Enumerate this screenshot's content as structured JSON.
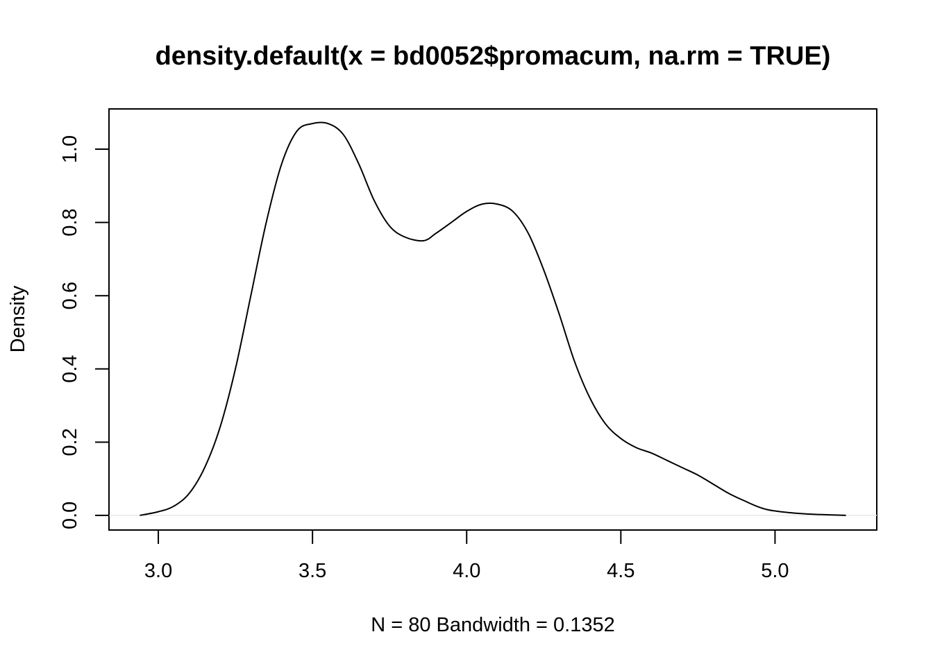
{
  "chart_data": {
    "type": "line",
    "title": "density.default(x = bd0052$promacum, na.rm = TRUE)",
    "xlabel": "N = 80   Bandwidth = 0.1352",
    "ylabel": "Density",
    "xlim": [
      2.84,
      5.33
    ],
    "ylim": [
      -0.04,
      1.11
    ],
    "x_ticks": [
      3.0,
      3.5,
      4.0,
      4.5,
      5.0
    ],
    "x_tick_labels": [
      "3.0",
      "3.5",
      "4.0",
      "4.5",
      "5.0"
    ],
    "y_ticks": [
      0.0,
      0.2,
      0.4,
      0.6,
      0.8,
      1.0
    ],
    "y_tick_labels": [
      "0.0",
      "0.2",
      "0.4",
      "0.6",
      "0.8",
      "1.0"
    ],
    "grid": false,
    "baseline": 0,
    "series": [
      {
        "x": [
          2.94,
          3.0,
          3.05,
          3.1,
          3.15,
          3.2,
          3.25,
          3.3,
          3.35,
          3.4,
          3.45,
          3.5,
          3.55,
          3.6,
          3.65,
          3.7,
          3.75,
          3.8,
          3.86,
          3.9,
          3.95,
          4.0,
          4.05,
          4.1,
          4.15,
          4.2,
          4.25,
          4.3,
          4.35,
          4.4,
          4.45,
          4.5,
          4.55,
          4.6,
          4.65,
          4.7,
          4.75,
          4.8,
          4.85,
          4.9,
          4.95,
          5.0,
          5.1,
          5.23
        ],
        "y": [
          0.0,
          0.01,
          0.025,
          0.06,
          0.13,
          0.24,
          0.4,
          0.6,
          0.8,
          0.96,
          1.05,
          1.07,
          1.07,
          1.04,
          0.96,
          0.86,
          0.79,
          0.76,
          0.75,
          0.77,
          0.8,
          0.83,
          0.85,
          0.85,
          0.83,
          0.77,
          0.67,
          0.55,
          0.42,
          0.32,
          0.25,
          0.21,
          0.185,
          0.17,
          0.15,
          0.13,
          0.11,
          0.085,
          0.06,
          0.04,
          0.022,
          0.012,
          0.004,
          0.0
        ]
      }
    ]
  }
}
